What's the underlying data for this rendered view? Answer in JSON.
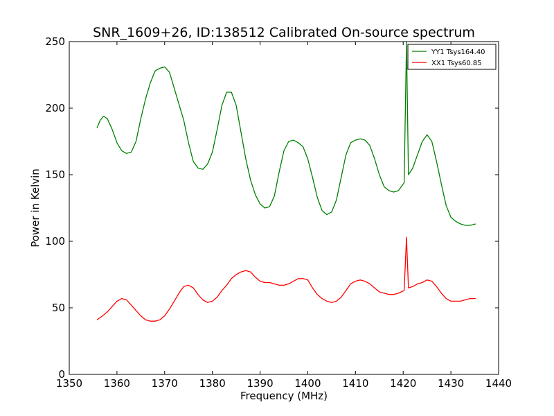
{
  "chart_data": {
    "type": "line",
    "title": "SNR_1609+26, ID:138512 Calibrated On-source spectrum",
    "xlabel": "Frequency (MHz)",
    "ylabel": "Power in Kelvin",
    "xlim": [
      1350,
      1440
    ],
    "ylim": [
      0,
      250
    ],
    "xticks": [
      1350,
      1360,
      1370,
      1380,
      1390,
      1400,
      1410,
      1420,
      1430,
      1440
    ],
    "yticks": [
      0,
      50,
      100,
      150,
      200,
      250
    ],
    "grid": false,
    "legend_position": "top-right",
    "series": [
      {
        "name": "YY1 Tsys164.40",
        "color": "#008000",
        "points": [
          [
            1355.8,
            185
          ],
          [
            1356.5,
            191
          ],
          [
            1357.2,
            194
          ],
          [
            1358,
            192
          ],
          [
            1359,
            184
          ],
          [
            1360,
            174
          ],
          [
            1361,
            168
          ],
          [
            1362,
            166
          ],
          [
            1363,
            167
          ],
          [
            1364,
            175
          ],
          [
            1365,
            192
          ],
          [
            1366,
            207
          ],
          [
            1367,
            219
          ],
          [
            1368,
            228
          ],
          [
            1369,
            230
          ],
          [
            1370,
            231
          ],
          [
            1371,
            227
          ],
          [
            1372,
            215
          ],
          [
            1373,
            203
          ],
          [
            1374,
            191
          ],
          [
            1375,
            174
          ],
          [
            1376,
            160
          ],
          [
            1377,
            155
          ],
          [
            1378,
            154
          ],
          [
            1379,
            158
          ],
          [
            1380,
            167
          ],
          [
            1381,
            184
          ],
          [
            1382,
            202
          ],
          [
            1383,
            212
          ],
          [
            1384,
            212
          ],
          [
            1385,
            202
          ],
          [
            1386,
            182
          ],
          [
            1387,
            162
          ],
          [
            1388,
            146
          ],
          [
            1389,
            135
          ],
          [
            1390,
            128
          ],
          [
            1391,
            125
          ],
          [
            1392,
            126
          ],
          [
            1393,
            134
          ],
          [
            1394,
            152
          ],
          [
            1395,
            168
          ],
          [
            1396,
            175
          ],
          [
            1397,
            176
          ],
          [
            1398,
            174
          ],
          [
            1399,
            171
          ],
          [
            1400,
            162
          ],
          [
            1401,
            148
          ],
          [
            1402,
            133
          ],
          [
            1403,
            123
          ],
          [
            1404,
            120
          ],
          [
            1405,
            122
          ],
          [
            1406,
            131
          ],
          [
            1407,
            148
          ],
          [
            1408,
            165
          ],
          [
            1409,
            174
          ],
          [
            1410,
            176
          ],
          [
            1411,
            177
          ],
          [
            1412,
            176
          ],
          [
            1413,
            172
          ],
          [
            1414,
            162
          ],
          [
            1415,
            150
          ],
          [
            1416,
            141
          ],
          [
            1417,
            138
          ],
          [
            1418,
            137
          ],
          [
            1419,
            138
          ],
          [
            1420.2,
            144
          ],
          [
            1420.7,
            250
          ],
          [
            1421.1,
            150
          ],
          [
            1422,
            155
          ],
          [
            1423,
            165
          ],
          [
            1424,
            175
          ],
          [
            1425,
            180
          ],
          [
            1426,
            175
          ],
          [
            1427,
            160
          ],
          [
            1428,
            143
          ],
          [
            1429,
            127
          ],
          [
            1430,
            118
          ],
          [
            1431,
            115
          ],
          [
            1432,
            113
          ],
          [
            1433,
            112
          ],
          [
            1434,
            112
          ],
          [
            1435.2,
            113
          ]
        ]
      },
      {
        "name": "XX1 Tsys60.85",
        "color": "#ff0000",
        "points": [
          [
            1355.8,
            41
          ],
          [
            1357,
            44
          ],
          [
            1358,
            47
          ],
          [
            1359,
            51
          ],
          [
            1360,
            55
          ],
          [
            1361,
            57
          ],
          [
            1362,
            56
          ],
          [
            1363,
            52
          ],
          [
            1364,
            48
          ],
          [
            1365,
            44
          ],
          [
            1366,
            41
          ],
          [
            1367,
            40
          ],
          [
            1368,
            40
          ],
          [
            1369,
            41
          ],
          [
            1370,
            44
          ],
          [
            1371,
            49
          ],
          [
            1372,
            55
          ],
          [
            1373,
            61
          ],
          [
            1374,
            66
          ],
          [
            1375,
            67
          ],
          [
            1376,
            65
          ],
          [
            1377,
            60
          ],
          [
            1378,
            56
          ],
          [
            1379,
            54
          ],
          [
            1380,
            55
          ],
          [
            1381,
            58
          ],
          [
            1382,
            63
          ],
          [
            1383,
            67
          ],
          [
            1384,
            72
          ],
          [
            1385,
            75
          ],
          [
            1386,
            77
          ],
          [
            1387,
            78
          ],
          [
            1388,
            77
          ],
          [
            1389,
            73
          ],
          [
            1390,
            70
          ],
          [
            1391,
            69
          ],
          [
            1392,
            69
          ],
          [
            1393,
            68
          ],
          [
            1394,
            67
          ],
          [
            1395,
            67
          ],
          [
            1396,
            68
          ],
          [
            1397,
            70
          ],
          [
            1398,
            72
          ],
          [
            1399,
            72
          ],
          [
            1400,
            71
          ],
          [
            1401,
            65
          ],
          [
            1402,
            60
          ],
          [
            1403,
            57
          ],
          [
            1404,
            55
          ],
          [
            1405,
            54
          ],
          [
            1406,
            55
          ],
          [
            1407,
            58
          ],
          [
            1408,
            63
          ],
          [
            1409,
            68
          ],
          [
            1410,
            70
          ],
          [
            1411,
            71
          ],
          [
            1412,
            70
          ],
          [
            1413,
            68
          ],
          [
            1414,
            65
          ],
          [
            1415,
            62
          ],
          [
            1416,
            61
          ],
          [
            1417,
            60
          ],
          [
            1418,
            60
          ],
          [
            1419,
            61
          ],
          [
            1420.2,
            63
          ],
          [
            1420.7,
            103
          ],
          [
            1421.1,
            65
          ],
          [
            1422,
            66
          ],
          [
            1423,
            68
          ],
          [
            1424,
            69
          ],
          [
            1425,
            71
          ],
          [
            1426,
            70
          ],
          [
            1427,
            66
          ],
          [
            1428,
            61
          ],
          [
            1429,
            57
          ],
          [
            1430,
            55
          ],
          [
            1431,
            55
          ],
          [
            1432,
            55
          ],
          [
            1433,
            56
          ],
          [
            1434,
            57
          ],
          [
            1435.2,
            57
          ]
        ]
      }
    ]
  }
}
